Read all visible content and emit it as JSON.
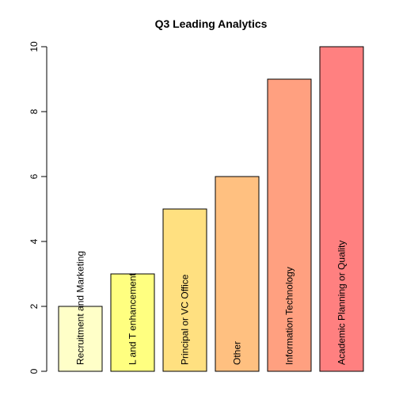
{
  "chart_data": {
    "type": "bar",
    "title": "Q3 Leading Analytics",
    "xlabel": "",
    "ylabel": "",
    "categories": [
      "Recruitment and Marketing",
      "L and T enhancement",
      "Principal or VC Office",
      "Other",
      "Information Technology",
      "Academic Planning or Quality"
    ],
    "values": [
      2,
      3,
      5,
      6,
      9,
      10
    ],
    "colors": [
      "#FFFFC8",
      "#FFFF80",
      "#FFE080",
      "#FFC080",
      "#FFA080",
      "#FF8080"
    ],
    "ylim": [
      0,
      10
    ],
    "yticks": [
      0,
      2,
      4,
      6,
      8,
      10
    ],
    "grid": false,
    "legend": "none",
    "labels_inside_bars": true,
    "label_orientation": "vertical"
  }
}
